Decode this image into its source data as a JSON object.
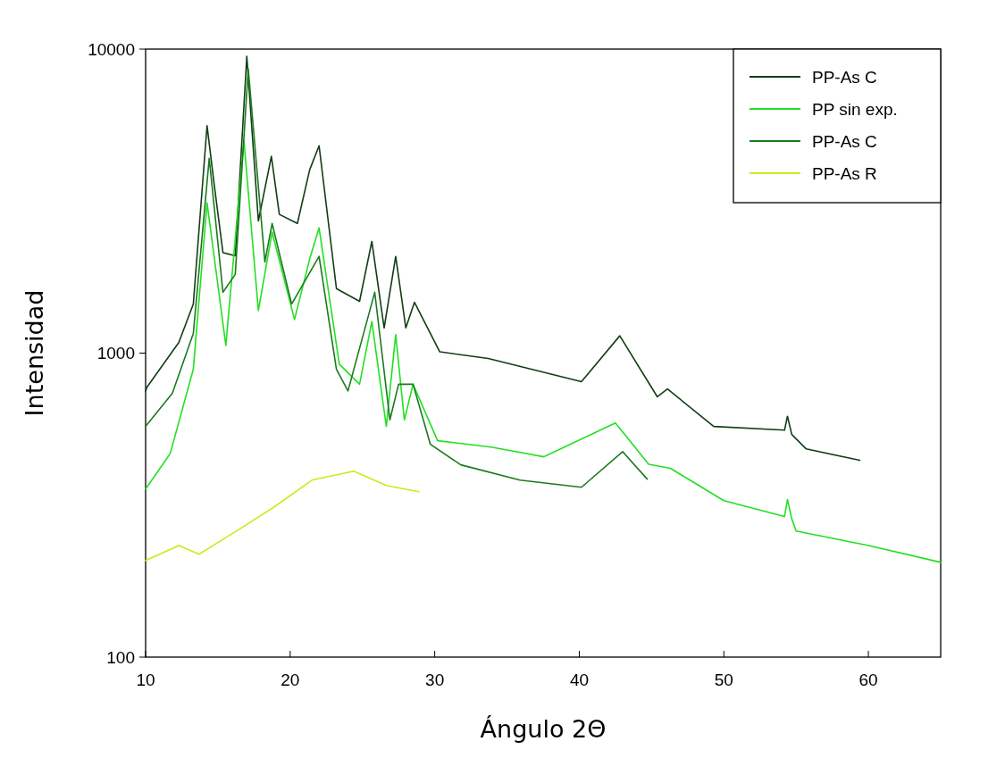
{
  "chart_data": {
    "type": "line",
    "xlabel": "Ángulo 2Θ",
    "ylabel": "Intensidad",
    "log": "y",
    "xlim": [
      10,
      65
    ],
    "xticks": [
      10,
      20,
      30,
      40,
      50,
      60
    ],
    "ylim": [
      100,
      10000
    ],
    "yticks": [
      100,
      1000,
      10000
    ],
    "grid": false,
    "legend": "top right",
    "marker": "none",
    "line_style": "solid",
    "series": [
      {
        "name": "PP-As C",
        "color": "#123d14",
        "x": [
          10,
          10.1,
          12.3,
          13.3,
          14.25,
          14.75,
          15.35,
          16.2,
          17.0,
          17.8,
          18.7,
          19.25,
          20.5,
          21.35,
          22.0,
          23.2,
          24.8,
          25.65,
          26.5,
          27.3,
          28.0,
          28.6,
          30.35,
          33.7,
          40.15,
          42.8,
          45.4,
          46.1,
          49.3,
          54.2,
          54.4,
          54.7,
          55.7,
          59.4
        ],
        "values": [
          750,
          773,
          1085,
          1450,
          5600,
          3570,
          2140,
          2090,
          9470,
          2720,
          4440,
          2860,
          2670,
          4010,
          4810,
          1630,
          1480,
          2330,
          1210,
          2080,
          1210,
          1470,
          1010,
          960,
          805,
          1140,
          718,
          762,
          574,
          558,
          620,
          540,
          484,
          444
        ]
      },
      {
        "name": "PP sin exp.",
        "color": "#22e022",
        "x": [
          10,
          11.7,
          13.3,
          14.25,
          15.55,
          16.8,
          17.8,
          18.75,
          20.3,
          21.35,
          22.0,
          23.4,
          24.8,
          25.65,
          26.65,
          27.3,
          27.9,
          28.5,
          30.2,
          33.9,
          37.55,
          42.5,
          44.8,
          46.3,
          50,
          54.2,
          54.4,
          54.7,
          55,
          60,
          65
        ],
        "values": [
          357,
          467,
          885,
          3120,
          1060,
          5010,
          1380,
          2500,
          1290,
          2040,
          2580,
          920,
          790,
          1270,
          574,
          1150,
          603,
          790,
          515,
          491,
          456,
          589,
          431,
          418,
          327,
          290,
          330,
          285,
          260,
          233,
          205
        ]
      },
      {
        "name": "PP-As C",
        "color": "#1a7a1e",
        "x": [
          10,
          11.85,
          13.3,
          14.4,
          15.35,
          16.2,
          17.1,
          18.25,
          18.75,
          20.1,
          22.0,
          23.2,
          24.0,
          25.85,
          26.9,
          27.5,
          28.5,
          29.7,
          31.8,
          35.9,
          40.15,
          43,
          44.7
        ],
        "values": [
          574,
          738,
          1160,
          4370,
          1585,
          1815,
          8610,
          1995,
          2670,
          1450,
          2080,
          885,
          751,
          1585,
          603,
          790,
          790,
          501,
          429,
          382,
          362,
          474,
          385
        ]
      },
      {
        "name": "PP-As R",
        "color": "#c8ec1e",
        "x": [
          10,
          12.3,
          13.7,
          16.4,
          18.9,
          21.5,
          24.4,
          26.65,
          28.9
        ],
        "values": [
          208,
          233,
          218,
          262,
          312,
          382,
          409,
          367,
          350
        ]
      }
    ]
  }
}
